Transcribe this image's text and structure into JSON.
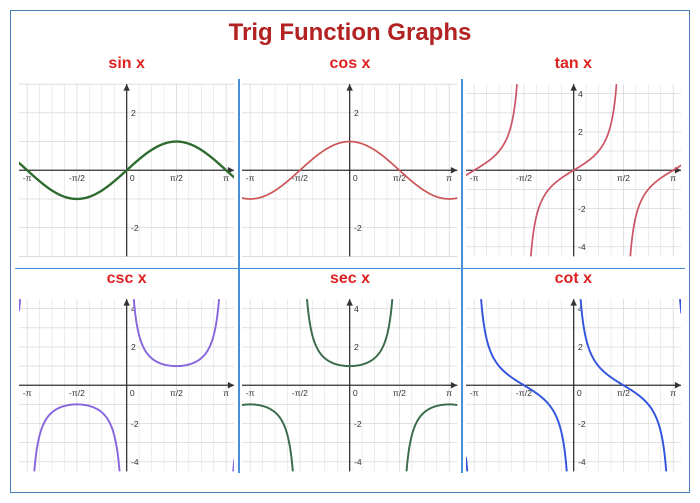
{
  "title": "Trig Function Graphs",
  "title_color": "#b22222",
  "title_fontsize": 24,
  "frame_border_color": "#4a7fb5",
  "divider_color": "#4a90d9",
  "cell_title_color": "#d22",
  "cell_title_fontsize": 16,
  "grid": {
    "stroke": "#d0d0d0",
    "stroke_width": 0.6,
    "minor_count": 4,
    "bg": "#ffffff"
  },
  "axis": {
    "stroke": "#333333",
    "stroke_width": 1.2,
    "label_color": "#333333",
    "label_fontsize": 8
  },
  "x_range": [
    -3.4,
    3.4
  ],
  "x_ticks": [
    {
      "v": -3.14159,
      "label": "-π"
    },
    {
      "v": -1.5708,
      "label": "-π/2"
    },
    {
      "v": 0,
      "label": "0"
    },
    {
      "v": 1.5708,
      "label": "π/2"
    },
    {
      "v": 3.14159,
      "label": "π"
    }
  ],
  "charts": [
    {
      "id": "sin",
      "title": "sin x",
      "color": "#2e6b2e",
      "line_width": 2.2,
      "y_range": [
        -3,
        3
      ],
      "y_ticks": [
        -2,
        2
      ],
      "fn": "sin"
    },
    {
      "id": "cos",
      "title": "cos x",
      "color": "#cc5555",
      "line_width": 1.6,
      "y_range": [
        -3,
        3
      ],
      "y_ticks": [
        -2,
        2
      ],
      "fn": "cos"
    },
    {
      "id": "tan",
      "title": "tan x",
      "color": "#cc5566",
      "line_width": 1.6,
      "y_range": [
        -4.5,
        4.5
      ],
      "y_ticks": [
        -4,
        -2,
        2,
        4
      ],
      "fn": "tan",
      "asymptotes": [
        -1.5708,
        1.5708
      ]
    },
    {
      "id": "csc",
      "title": "csc x",
      "color": "#8866dd",
      "line_width": 1.8,
      "y_range": [
        -4.5,
        4.5
      ],
      "y_ticks": [
        -4,
        -2,
        2,
        4
      ],
      "fn": "csc",
      "asymptotes": [
        -3.14159,
        0,
        3.14159
      ]
    },
    {
      "id": "sec",
      "title": "sec x",
      "color": "#3a6b4a",
      "line_width": 1.8,
      "y_range": [
        -4.5,
        4.5
      ],
      "y_ticks": [
        -4,
        -2,
        2,
        4
      ],
      "fn": "sec",
      "asymptotes": [
        -1.5708,
        1.5708
      ]
    },
    {
      "id": "cot",
      "title": "cot x",
      "color": "#3355dd",
      "line_width": 1.8,
      "y_range": [
        -4.5,
        4.5
      ],
      "y_ticks": [
        -4,
        -2,
        2,
        4
      ],
      "fn": "cot",
      "asymptotes": [
        -3.14159,
        0,
        3.14159
      ]
    }
  ]
}
